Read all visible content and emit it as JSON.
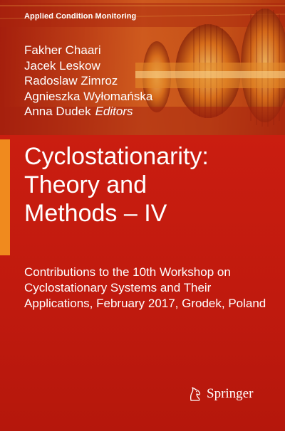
{
  "series": "Applied Condition Monitoring",
  "editors": [
    "Fakher Chaari",
    "Jacek Leskow",
    "Radoslaw Zimroz",
    "Agnieszka Wyłomańska",
    "Anna Dudek"
  ],
  "editors_role": "Editors",
  "title_lines": [
    "Cyclostationarity:",
    "Theory and",
    "Methods – IV"
  ],
  "subtitle": "Contributions to the 10th Workshop on Cyclostationary Systems and Their Applications, February 2017, Grodek, Poland",
  "publisher": "Springer",
  "icons": {
    "publisher_logo": "horse-head-icon"
  },
  "colors": {
    "background": "#c81e12",
    "accent": "#f08a1e",
    "text": "#ffffff"
  }
}
